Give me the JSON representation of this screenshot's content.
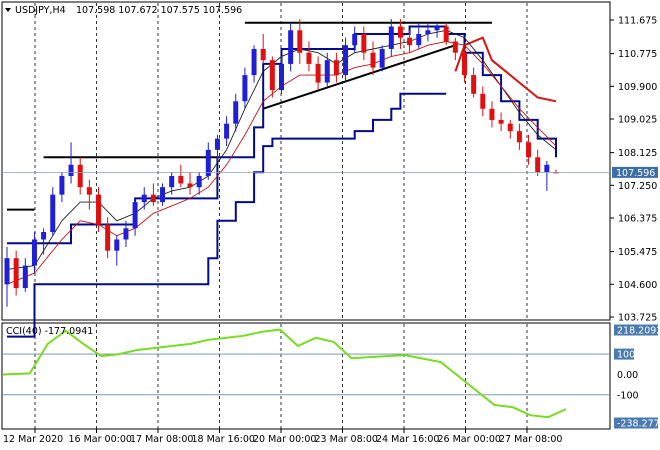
{
  "header": {
    "symbol": "USDJPY,H4",
    "ohlc": "107.598 107.672 107.575 107.596"
  },
  "cci_header": "CCI(40) -177.0941",
  "current_price": "107.596",
  "colors": {
    "bull": "#1f1fd6",
    "bear": "#e01010",
    "upper_band": "#000a8c",
    "lower_band": "#dd1111",
    "cci_line": "#77dd22",
    "price_box": "#3c6fa8"
  },
  "chart_data": [
    {
      "type": "candlestick",
      "y_axis_ticks": [
        "111.675",
        "110.775",
        "109.900",
        "109.025",
        "108.125",
        "107.250",
        "106.375",
        "105.475",
        "104.600",
        "103.725"
      ],
      "y_range": [
        103.725,
        111.675
      ],
      "x_axis_labels": [
        "12 Mar 2020",
        "16 Mar 00:00",
        "17 Mar 08:00",
        "18 Mar 16:00",
        "20 Mar 00:00",
        "23 Mar 08:00",
        "24 Mar 16:00",
        "26 Mar 00:00",
        "27 Mar 08:00"
      ],
      "candles": [
        [
          104.6,
          105.6,
          104.0,
          105.3
        ],
        [
          105.3,
          105.5,
          104.3,
          104.5
        ],
        [
          104.5,
          105.3,
          104.4,
          105.1
        ],
        [
          105.1,
          106.0,
          104.9,
          105.8
        ],
        [
          105.8,
          106.1,
          105.4,
          106.0
        ],
        [
          106.0,
          107.2,
          105.9,
          107.0
        ],
        [
          107.0,
          107.6,
          106.8,
          107.5
        ],
        [
          107.5,
          108.4,
          107.3,
          107.8
        ],
        [
          107.8,
          108.0,
          107.0,
          107.2
        ],
        [
          107.2,
          107.4,
          106.6,
          107.0
        ],
        [
          107.0,
          107.2,
          106.0,
          106.2
        ],
        [
          106.2,
          106.4,
          105.3,
          105.5
        ],
        [
          105.5,
          105.9,
          105.1,
          105.8
        ],
        [
          105.8,
          106.3,
          105.6,
          106.1
        ],
        [
          106.1,
          106.9,
          105.9,
          106.8
        ],
        [
          106.8,
          107.2,
          106.6,
          107.0
        ],
        [
          107.0,
          107.3,
          106.7,
          106.8
        ],
        [
          106.8,
          107.3,
          106.7,
          107.2
        ],
        [
          107.2,
          107.6,
          107.0,
          107.5
        ],
        [
          107.5,
          107.8,
          107.2,
          107.3
        ],
        [
          107.3,
          107.6,
          107.0,
          107.2
        ],
        [
          107.2,
          107.6,
          107.0,
          107.5
        ],
        [
          107.5,
          108.4,
          107.4,
          108.2
        ],
        [
          108.2,
          108.6,
          107.9,
          108.5
        ],
        [
          108.5,
          109.1,
          108.3,
          108.9
        ],
        [
          108.9,
          109.7,
          108.7,
          109.5
        ],
        [
          109.5,
          110.4,
          109.3,
          110.2
        ],
        [
          110.2,
          111.0,
          110.0,
          110.9
        ],
        [
          110.9,
          111.3,
          110.5,
          110.6
        ],
        [
          110.6,
          110.7,
          109.6,
          109.8
        ],
        [
          109.8,
          110.7,
          109.7,
          110.5
        ],
        [
          110.5,
          111.6,
          110.3,
          111.4
        ],
        [
          111.4,
          111.7,
          110.5,
          110.8
        ],
        [
          110.8,
          111.1,
          110.3,
          110.5
        ],
        [
          110.5,
          110.7,
          109.8,
          110.0
        ],
        [
          110.0,
          110.8,
          109.9,
          110.6
        ],
        [
          110.6,
          110.8,
          110.0,
          110.2
        ],
        [
          110.2,
          111.2,
          110.0,
          111.0
        ],
        [
          111.0,
          111.5,
          110.8,
          111.3
        ],
        [
          111.3,
          111.5,
          110.6,
          110.8
        ],
        [
          110.8,
          111.1,
          110.2,
          110.4
        ],
        [
          110.4,
          111.0,
          110.3,
          110.9
        ],
        [
          110.9,
          111.7,
          110.7,
          111.5
        ],
        [
          111.5,
          111.7,
          110.9,
          111.2
        ],
        [
          111.2,
          111.4,
          110.8,
          111.0
        ],
        [
          111.0,
          111.6,
          110.9,
          111.3
        ],
        [
          111.3,
          111.6,
          111.1,
          111.4
        ],
        [
          111.4,
          111.6,
          111.2,
          111.5
        ],
        [
          111.5,
          111.6,
          111.0,
          111.1
        ],
        [
          111.1,
          111.2,
          110.6,
          110.8
        ],
        [
          110.8,
          110.9,
          110.0,
          110.2
        ],
        [
          110.2,
          110.4,
          109.6,
          109.7
        ],
        [
          109.7,
          109.9,
          109.1,
          109.3
        ],
        [
          109.3,
          109.5,
          108.8,
          109.0
        ],
        [
          109.0,
          109.2,
          108.7,
          108.9
        ],
        [
          108.9,
          109.0,
          108.5,
          108.7
        ],
        [
          108.7,
          108.9,
          108.2,
          108.4
        ],
        [
          108.4,
          108.6,
          107.8,
          108.0
        ],
        [
          108.0,
          108.2,
          107.5,
          107.6
        ],
        [
          107.6,
          107.9,
          107.1,
          107.8
        ],
        [
          107.598,
          107.672,
          107.575,
          107.596
        ]
      ],
      "upper_band": [
        [
          0,
          105.7
        ],
        [
          6,
          105.7
        ],
        [
          7,
          106.2
        ],
        [
          12,
          106.2
        ],
        [
          14,
          106.9
        ],
        [
          22,
          106.9
        ],
        [
          23,
          108.0
        ],
        [
          27,
          108.8
        ],
        [
          28,
          110.5
        ],
        [
          30,
          110.9
        ],
        [
          38,
          111.3
        ],
        [
          44,
          111.5
        ],
        [
          48,
          111.3
        ],
        [
          50,
          110.8
        ],
        [
          52,
          110.2
        ],
        [
          54,
          109.5
        ],
        [
          56,
          109.0
        ],
        [
          58,
          108.5
        ],
        [
          60,
          108.0
        ]
      ],
      "lower_band": [
        [
          0,
          103.2
        ],
        [
          3,
          104.6
        ],
        [
          13,
          104.6
        ],
        [
          21,
          104.6
        ],
        [
          22,
          105.3
        ],
        [
          23,
          106.3
        ],
        [
          25,
          106.8
        ],
        [
          27,
          107.6
        ],
        [
          28,
          108.3
        ],
        [
          29,
          108.5
        ],
        [
          37,
          108.5
        ],
        [
          38,
          108.7
        ],
        [
          40,
          109.0
        ],
        [
          42,
          109.3
        ],
        [
          43,
          109.7
        ],
        [
          47,
          109.7
        ],
        [
          48,
          109.7
        ]
      ],
      "lower_band_2": [
        [
          49,
          110.3
        ],
        [
          50,
          111.0
        ],
        [
          52,
          111.2
        ],
        [
          53,
          110.6
        ],
        [
          55,
          110.2
        ],
        [
          56,
          110.0
        ],
        [
          57,
          109.8
        ],
        [
          58,
          109.6
        ],
        [
          60,
          109.5
        ]
      ],
      "ma_black": [
        [
          0,
          105.0
        ],
        [
          3,
          105.1
        ],
        [
          6,
          106.3
        ],
        [
          8,
          106.8
        ],
        [
          10,
          106.8
        ],
        [
          12,
          106.3
        ],
        [
          14,
          106.5
        ],
        [
          16,
          106.9
        ],
        [
          18,
          107.1
        ],
        [
          20,
          107.2
        ],
        [
          22,
          107.5
        ],
        [
          24,
          108.2
        ],
        [
          26,
          109.3
        ],
        [
          28,
          110.3
        ],
        [
          30,
          110.7
        ],
        [
          32,
          110.9
        ],
        [
          34,
          110.8
        ],
        [
          36,
          110.5
        ],
        [
          38,
          110.8
        ],
        [
          40,
          110.9
        ],
        [
          42,
          111.0
        ],
        [
          44,
          111.1
        ],
        [
          46,
          111.3
        ],
        [
          48,
          111.4
        ],
        [
          50,
          111.2
        ],
        [
          52,
          110.6
        ],
        [
          54,
          109.9
        ],
        [
          56,
          109.2
        ],
        [
          58,
          108.6
        ],
        [
          60,
          108.2
        ]
      ],
      "ma_red": [
        [
          0,
          104.6
        ],
        [
          3,
          104.9
        ],
        [
          6,
          105.8
        ],
        [
          8,
          106.3
        ],
        [
          10,
          106.2
        ],
        [
          12,
          105.9
        ],
        [
          14,
          106.1
        ],
        [
          16,
          106.5
        ],
        [
          18,
          106.7
        ],
        [
          20,
          106.9
        ],
        [
          22,
          107.2
        ],
        [
          24,
          107.8
        ],
        [
          26,
          108.6
        ],
        [
          28,
          109.5
        ],
        [
          30,
          109.9
        ],
        [
          32,
          110.2
        ],
        [
          34,
          110.2
        ],
        [
          36,
          110.2
        ],
        [
          38,
          110.4
        ],
        [
          40,
          110.5
        ],
        [
          42,
          110.7
        ],
        [
          44,
          110.8
        ],
        [
          46,
          111.0
        ],
        [
          48,
          111.1
        ],
        [
          50,
          111.0
        ],
        [
          52,
          110.5
        ],
        [
          54,
          109.9
        ],
        [
          56,
          109.3
        ],
        [
          58,
          108.8
        ],
        [
          60,
          108.3
        ]
      ],
      "trend_lines": [
        [
          [
            0,
            106.6
          ],
          [
            3,
            106.6
          ]
        ],
        [
          [
            4,
            108.0
          ],
          [
            23,
            108.0
          ]
        ],
        [
          [
            26,
            111.6
          ],
          [
            53,
            111.6
          ]
        ],
        [
          [
            28,
            109.3
          ],
          [
            49,
            111.0
          ]
        ]
      ]
    },
    {
      "type": "line",
      "y_axis_ticks": [
        "218.2092",
        "100",
        "0.00",
        "-100",
        "-238.2773"
      ],
      "y_range": [
        -238.2773,
        218.2092
      ],
      "levels": [
        100,
        -100
      ],
      "values": [
        [
          0,
          0
        ],
        [
          3,
          5
        ],
        [
          5,
          150
        ],
        [
          7,
          215
        ],
        [
          9,
          150
        ],
        [
          11,
          90
        ],
        [
          13,
          100
        ],
        [
          15,
          120
        ],
        [
          17,
          130
        ],
        [
          19,
          140
        ],
        [
          21,
          150
        ],
        [
          23,
          170
        ],
        [
          25,
          180
        ],
        [
          27,
          190
        ],
        [
          29,
          210
        ],
        [
          31,
          220
        ],
        [
          33,
          140
        ],
        [
          35,
          180
        ],
        [
          37,
          160
        ],
        [
          39,
          80
        ],
        [
          41,
          85
        ],
        [
          43,
          90
        ],
        [
          45,
          95
        ],
        [
          47,
          78
        ],
        [
          49,
          60
        ],
        [
          51,
          -10
        ],
        [
          53,
          -80
        ],
        [
          55,
          -150
        ],
        [
          57,
          -160
        ],
        [
          59,
          -200
        ],
        [
          61,
          -210
        ],
        [
          63,
          -170
        ]
      ]
    }
  ]
}
